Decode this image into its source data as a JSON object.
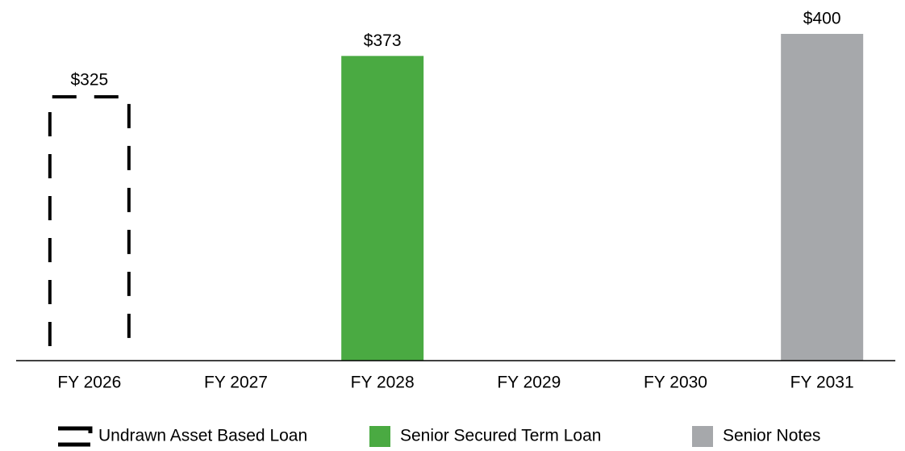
{
  "chart_data": {
    "type": "bar",
    "categories": [
      "FY 2026",
      "FY 2027",
      "FY 2028",
      "FY 2029",
      "FY 2030",
      "FY 2031"
    ],
    "series": [
      {
        "name": "Undrawn Asset Based Loan",
        "color": "#000000",
        "outline": true,
        "values": [
          325,
          null,
          null,
          null,
          null,
          null
        ],
        "value_labels": [
          "$325",
          null,
          null,
          null,
          null,
          null
        ]
      },
      {
        "name": "Senior Secured Term Loan",
        "color": "#4aaa42",
        "values": [
          null,
          null,
          373,
          null,
          null,
          null
        ],
        "value_labels": [
          null,
          null,
          "$373",
          null,
          null,
          null
        ]
      },
      {
        "name": "Senior Notes",
        "color": "#a6a8ab",
        "values": [
          null,
          null,
          null,
          null,
          null,
          400
        ],
        "value_labels": [
          null,
          null,
          null,
          null,
          null,
          "$400"
        ]
      }
    ],
    "ylim": [
      0,
      400
    ],
    "legend": "bottom"
  }
}
